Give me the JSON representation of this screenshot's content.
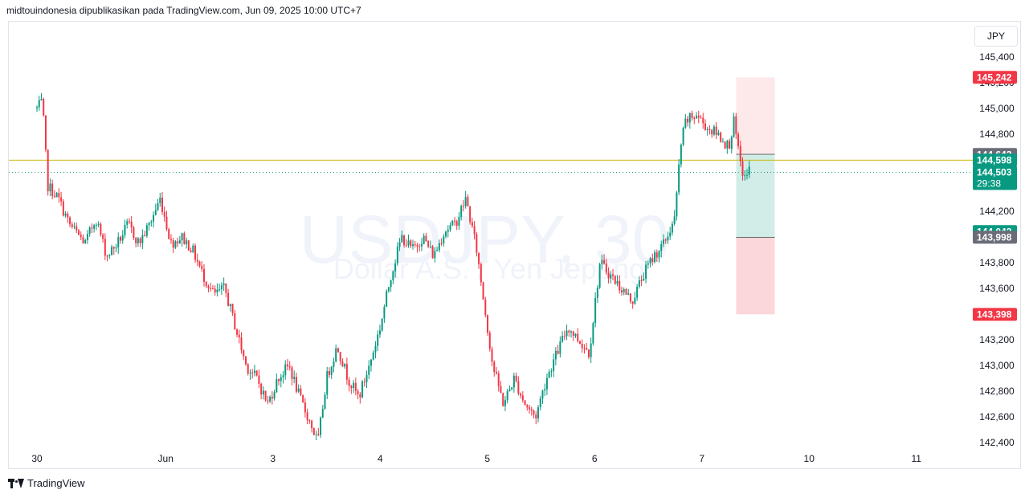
{
  "header": {
    "text": "midtouindonesia dipublikasikan pada TradingView.com, Jun 09, 2025 10:00 UTC+7"
  },
  "currency": {
    "label": "JPY"
  },
  "footer": {
    "brand": "TradingView"
  },
  "watermark": {
    "symbol": "USDJPY, 30",
    "description": "Dollar A.S. / Yen Jepang"
  },
  "colors": {
    "up": "#089981",
    "down": "#f23645",
    "hline": "#c9b500",
    "dotted": "#089981"
  },
  "chart_data": {
    "type": "candlestick",
    "ylim": [
      142300,
      145650
    ],
    "y_ticks": [
      145400,
      145200,
      145000,
      144800,
      144200,
      143800,
      143600,
      143200,
      143000,
      142800,
      142600,
      142400
    ],
    "y_tick_labels": [
      "145,400",
      "145,200",
      "145,000",
      "144,800",
      "144,200",
      "143,800",
      "143,600",
      "143,200",
      "143,000",
      "142,800",
      "142,600",
      "142,400"
    ],
    "x_tick_labels": [
      {
        "label": "30",
        "day": 0
      },
      {
        "label": "Jun",
        "day": 1.2
      },
      {
        "label": "3",
        "day": 2.2
      },
      {
        "label": "4",
        "day": 3.2
      },
      {
        "label": "5",
        "day": 4.2
      },
      {
        "label": "6",
        "day": 5.2
      },
      {
        "label": "7",
        "day": 6.2
      },
      {
        "label": "10",
        "day": 7.2
      },
      {
        "label": "11",
        "day": 8.2
      }
    ],
    "price_labels": [
      {
        "label": "145,242",
        "value": 145242,
        "bg": "#f23645"
      },
      {
        "label": "144,642",
        "value": 144642,
        "bg": "#6a6d78"
      },
      {
        "label": "144,598",
        "value": 144598,
        "bg": "#089981"
      },
      {
        "label": "144,503",
        "value": 144503,
        "bg": "#089981",
        "sub": "29:38"
      },
      {
        "label": "144,042",
        "value": 144042,
        "bg": "#089981"
      },
      {
        "label": "143,998",
        "value": 143998,
        "bg": "#6a6d78"
      },
      {
        "label": "143,398",
        "value": 143398,
        "bg": "#f23645"
      }
    ],
    "horizontal_line": 144598,
    "dotted_line": 144503,
    "positions": [
      {
        "type": "short",
        "day_start": 6.52,
        "day_end": 6.88,
        "target_top": 145242,
        "stop_bottom": 143398,
        "entry_main": 144642,
        "entry_alt": 143998
      },
      {
        "type": "long",
        "day_start": 6.52,
        "day_end": 6.88,
        "target_top": 144642,
        "stop_bottom": 143998
      }
    ],
    "path": [
      [
        0,
        145000
      ],
      [
        0.05,
        145050
      ],
      [
        0.1,
        144400
      ],
      [
        0.2,
        144300
      ],
      [
        0.3,
        144100
      ],
      [
        0.45,
        143950
      ],
      [
        0.55,
        144150
      ],
      [
        0.65,
        143850
      ],
      [
        0.75,
        143950
      ],
      [
        0.85,
        144100
      ],
      [
        0.95,
        143950
      ],
      [
        1.05,
        144100
      ],
      [
        1.15,
        144300
      ],
      [
        1.25,
        143950
      ],
      [
        1.35,
        144000
      ],
      [
        1.45,
        143900
      ],
      [
        1.55,
        143700
      ],
      [
        1.65,
        143550
      ],
      [
        1.75,
        143600
      ],
      [
        1.85,
        143300
      ],
      [
        1.95,
        143000
      ],
      [
        2.05,
        142900
      ],
      [
        2.15,
        142700
      ],
      [
        2.25,
        142900
      ],
      [
        2.35,
        143000
      ],
      [
        2.45,
        142750
      ],
      [
        2.55,
        142550
      ],
      [
        2.62,
        142400
      ],
      [
        2.7,
        142900
      ],
      [
        2.8,
        143150
      ],
      [
        2.9,
        142900
      ],
      [
        3.0,
        142750
      ],
      [
        3.1,
        143000
      ],
      [
        3.2,
        143300
      ],
      [
        3.3,
        143700
      ],
      [
        3.4,
        144000
      ],
      [
        3.5,
        143900
      ],
      [
        3.6,
        144000
      ],
      [
        3.7,
        143850
      ],
      [
        3.8,
        144050
      ],
      [
        3.9,
        144100
      ],
      [
        4.0,
        144300
      ],
      [
        4.1,
        143900
      ],
      [
        4.15,
        143600
      ],
      [
        4.25,
        143000
      ],
      [
        4.35,
        142700
      ],
      [
        4.45,
        142900
      ],
      [
        4.55,
        142700
      ],
      [
        4.65,
        142600
      ],
      [
        4.75,
        142900
      ],
      [
        4.85,
        143100
      ],
      [
        4.95,
        143300
      ],
      [
        5.05,
        143200
      ],
      [
        5.15,
        143100
      ],
      [
        5.25,
        143800
      ],
      [
        5.35,
        143700
      ],
      [
        5.45,
        143600
      ],
      [
        5.55,
        143500
      ],
      [
        5.65,
        143700
      ],
      [
        5.75,
        143850
      ],
      [
        5.85,
        143950
      ],
      [
        5.95,
        144150
      ],
      [
        6.0,
        144700
      ],
      [
        6.05,
        144900
      ],
      [
        6.15,
        144950
      ],
      [
        6.25,
        144850
      ],
      [
        6.35,
        144800
      ],
      [
        6.45,
        144700
      ],
      [
        6.5,
        144900
      ],
      [
        6.55,
        144600
      ],
      [
        6.6,
        144450
      ],
      [
        6.65,
        144550
      ]
    ]
  }
}
